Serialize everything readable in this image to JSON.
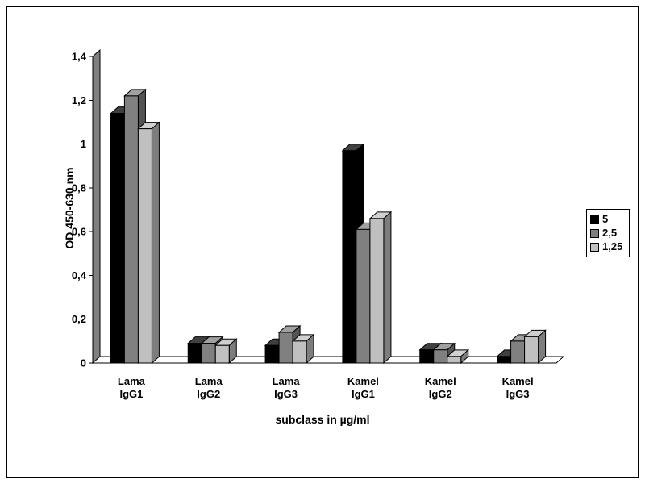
{
  "chart_data": {
    "type": "bar",
    "style": "3d-clustered",
    "title": "",
    "xlabel": "subclass in µg/ml",
    "ylabel": "OD 450-630 nm",
    "categories": [
      [
        "Lama",
        "IgG1"
      ],
      [
        "Lama",
        "IgG2"
      ],
      [
        "Lama",
        "IgG3"
      ],
      [
        "Kamel",
        "IgG1"
      ],
      [
        "Kamel",
        "IgG2"
      ],
      [
        "Kamel",
        "IgG3"
      ]
    ],
    "series": [
      {
        "name": "5",
        "color": "#000000",
        "values": [
          1.14,
          0.09,
          0.08,
          0.97,
          0.06,
          0.03
        ]
      },
      {
        "name": "2,5",
        "color": "#808080",
        "values": [
          1.22,
          0.09,
          0.14,
          0.61,
          0.06,
          0.1
        ]
      },
      {
        "name": "1,25",
        "color": "#c0c0c0",
        "values": [
          1.07,
          0.08,
          0.1,
          0.66,
          0.03,
          0.12
        ]
      }
    ],
    "ylim": [
      0,
      1.4
    ],
    "ytick_step": 0.2,
    "ytick_labels": [
      "0",
      "0,2",
      "0,4",
      "0,6",
      "0,8",
      "1",
      "1,2",
      "1,4"
    ],
    "decimal_separator": ",",
    "grid": false,
    "legend_position": "right",
    "wall_color": "#808080",
    "floor_color": "#ffffff"
  }
}
